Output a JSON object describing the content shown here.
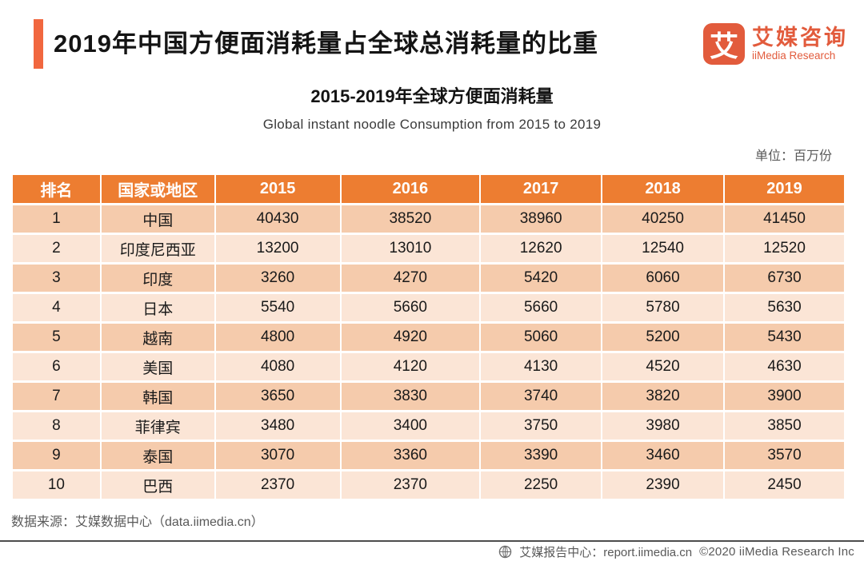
{
  "header": {
    "title": "2019年中国方便面消耗量占全球总消耗量的比重",
    "logo": {
      "icon_char": "艾",
      "name_cn": "艾媒咨询",
      "name_en": "iiMedia Research"
    }
  },
  "chart_data": {
    "type": "table",
    "title": "2015-2019年全球方便面消耗量",
    "title_en": "Global instant noodle Consumption from 2015 to 2019",
    "unit_label": "单位：百万份",
    "columns": [
      "排名",
      "国家或地区",
      "2015",
      "2016",
      "2017",
      "2018",
      "2019"
    ],
    "rows": [
      [
        "1",
        "中国",
        "40430",
        "38520",
        "38960",
        "40250",
        "41450"
      ],
      [
        "2",
        "印度尼西亚",
        "13200",
        "13010",
        "12620",
        "12540",
        "12520"
      ],
      [
        "3",
        "印度",
        "3260",
        "4270",
        "5420",
        "6060",
        "6730"
      ],
      [
        "4",
        "日本",
        "5540",
        "5660",
        "5660",
        "5780",
        "5630"
      ],
      [
        "5",
        "越南",
        "4800",
        "4920",
        "5060",
        "5200",
        "5430"
      ],
      [
        "6",
        "美国",
        "4080",
        "4120",
        "4130",
        "4520",
        "4630"
      ],
      [
        "7",
        "韩国",
        "3650",
        "3830",
        "3740",
        "3820",
        "3900"
      ],
      [
        "8",
        "菲律宾",
        "3480",
        "3400",
        "3750",
        "3980",
        "3850"
      ],
      [
        "9",
        "泰国",
        "3070",
        "3360",
        "3390",
        "3460",
        "3570"
      ],
      [
        "10",
        "巴西",
        "2370",
        "2370",
        "2250",
        "2390",
        "2450"
      ]
    ],
    "column_widths_pct": [
      10.6,
      13.7,
      15.1,
      16.8,
      14.6,
      14.7,
      14.5
    ]
  },
  "footer": {
    "source": "数据来源：艾媒数据中心（data.iimedia.cn）",
    "report_center": "艾媒报告中心：report.iimedia.cn",
    "copyright": "©2020  iiMedia Research Inc"
  },
  "colors": {
    "header_orange": "#ED7D31",
    "accent_bar_orange": "#F1673F",
    "logo_orange": "#E25B3C",
    "row_odd": "#F5CBAC",
    "row_even": "#FBE5D6",
    "gray_text": "#595959"
  }
}
